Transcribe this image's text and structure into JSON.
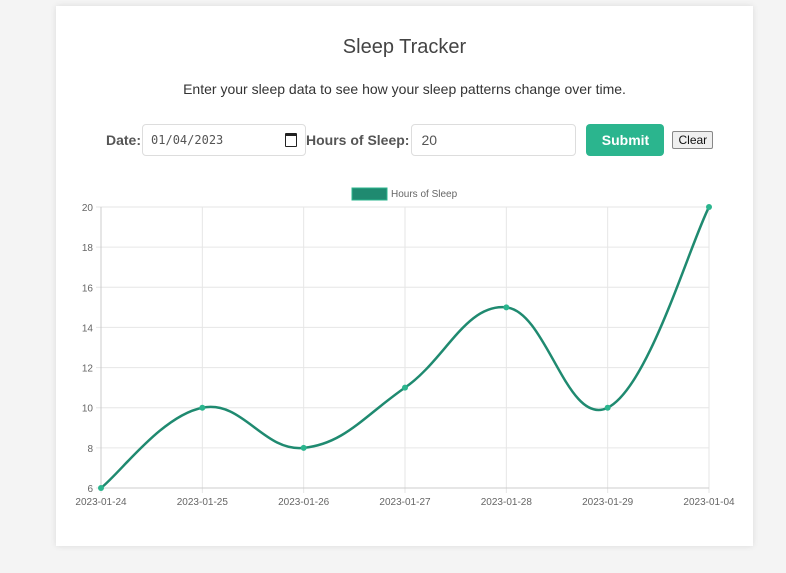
{
  "header": {
    "title": "Sleep Tracker",
    "subtitle": "Enter your sleep data to see how your sleep patterns change over time."
  },
  "form": {
    "date_label": "Date:",
    "date_value": "01/04/2023",
    "hours_label": "Hours of Sleep:",
    "hours_value": "20",
    "submit_label": "Submit",
    "clear_label": "Clear"
  },
  "colors": {
    "accent": "#2bb58e",
    "line": "#1f8a70"
  },
  "chart_data": {
    "type": "line",
    "title": "",
    "categories": [
      "2023-01-24",
      "2023-01-25",
      "2023-01-26",
      "2023-01-27",
      "2023-01-28",
      "2023-01-29",
      "2023-01-04"
    ],
    "series": [
      {
        "name": "Hours of Sleep",
        "values": [
          6,
          10,
          8,
          11,
          15,
          10,
          20
        ],
        "color": "#1f8a70"
      }
    ],
    "xlabel": "",
    "ylabel": "",
    "ylim": [
      6,
      20
    ],
    "yticks": [
      6,
      8,
      10,
      12,
      14,
      16,
      18,
      20
    ],
    "grid": true,
    "legend_position": "top"
  }
}
